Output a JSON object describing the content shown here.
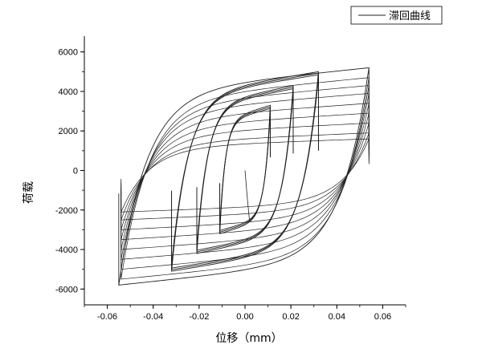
{
  "chart_data": {
    "type": "line",
    "xlabel": "位移（mm）",
    "ylabel": "荷载",
    "xlim": [
      -0.07,
      0.07
    ],
    "ylim": [
      -6800,
      6800
    ],
    "xticks": [
      -0.06,
      -0.04,
      -0.02,
      0.0,
      0.02,
      0.04,
      0.06
    ],
    "xtick_labels": [
      "-0.06",
      "-0.04",
      "-0.02",
      "0.00",
      "0.02",
      "0.04",
      "0.06"
    ],
    "yticks": [
      -6000,
      -4000,
      -2000,
      0,
      2000,
      4000,
      6000
    ],
    "ytick_labels": [
      "-6000",
      "-4000",
      "-2000",
      "0",
      "2000",
      "4000",
      "6000"
    ],
    "grid": false,
    "legend_position": "top-right",
    "line_color": "#222222",
    "series": [
      {
        "name": "滞回曲线",
        "loops": [
          {
            "xmax": 0.011,
            "xmin": -0.011,
            "pmax": 3300,
            "pmin": -3200,
            "count": 3
          },
          {
            "xmax": 0.021,
            "xmin": -0.021,
            "pmax": 4300,
            "pmin": -4200,
            "count": 3
          },
          {
            "xmax": 0.032,
            "xmin": -0.032,
            "pmax": 5000,
            "pmin": -5100,
            "count": 3
          },
          {
            "xmax": 0.054,
            "xmin": -0.055,
            "pmax": 5200,
            "pmin": -5800,
            "count": 1
          }
        ],
        "degrading_loops": [
          {
            "xmax": 0.054,
            "xmin": -0.054,
            "pmax": 4700,
            "pmin": -5500
          },
          {
            "xmax": 0.054,
            "xmin": -0.054,
            "pmax": 4300,
            "pmin": -5000
          },
          {
            "xmax": 0.054,
            "xmin": -0.054,
            "pmax": 3900,
            "pmin": -4500
          },
          {
            "xmax": 0.054,
            "xmin": -0.054,
            "pmax": 3400,
            "pmin": -4000
          },
          {
            "xmax": 0.054,
            "xmin": -0.054,
            "pmax": 2900,
            "pmin": -3500
          },
          {
            "xmax": 0.054,
            "xmin": -0.054,
            "pmax": 2400,
            "pmin": -3000
          },
          {
            "xmax": 0.054,
            "xmin": -0.054,
            "pmax": 1900,
            "pmin": -2500
          },
          {
            "xmax": 0.054,
            "xmin": -0.054,
            "pmax": 1600,
            "pmin": -2100
          }
        ]
      }
    ]
  }
}
